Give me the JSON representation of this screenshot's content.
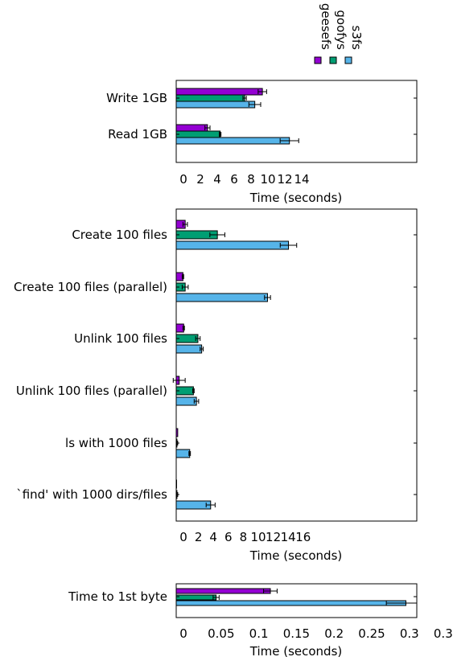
{
  "legend": {
    "items": [
      {
        "name": "geesefs",
        "color": "#9400d3"
      },
      {
        "name": "goofys",
        "color": "#009e73"
      },
      {
        "name": "s3fs",
        "color": "#56b4e9"
      }
    ]
  },
  "chart_data": [
    {
      "type": "bar",
      "orientation": "horizontal",
      "xlabel": "Time (seconds)",
      "xlim": [
        0,
        14
      ],
      "xticks": [
        "0",
        "2",
        "4",
        "6",
        "8",
        "10",
        "12",
        "14"
      ],
      "categories": [
        "Write 1GB",
        "Read 1GB"
      ],
      "series": [
        {
          "name": "geesefs",
          "color": "#9400d3",
          "values": [
            10.2,
            3.7
          ],
          "errors": [
            0.5,
            0.3
          ]
        },
        {
          "name": "goofys",
          "color": "#009e73",
          "values": [
            8.1,
            5.2
          ],
          "errors": [
            0.2,
            0.1
          ]
        },
        {
          "name": "s3fs",
          "color": "#56b4e9",
          "values": [
            9.3,
            13.4
          ],
          "errors": [
            0.7,
            1.1
          ]
        }
      ],
      "grid": false
    },
    {
      "type": "bar",
      "orientation": "horizontal",
      "xlabel": "Time (seconds)",
      "xlim": [
        0,
        16
      ],
      "xticks": [
        "0",
        "2",
        "4",
        "6",
        "8",
        "10",
        "12",
        "14",
        "16"
      ],
      "categories": [
        "Create 100 files",
        "Create 100 files (parallel)",
        "Unlink 100 files",
        "Unlink 100 files (parallel)",
        "ls with 1000 files",
        "`find' with 1000 dirs/files"
      ],
      "series": [
        {
          "name": "geesefs",
          "color": "#9400d3",
          "values": [
            1.2,
            0.9,
            1.0,
            0.4,
            0.2,
            0.05
          ],
          "errors": [
            0.3,
            0.1,
            0.1,
            0.8,
            0.0,
            0.0
          ]
        },
        {
          "name": "goofys",
          "color": "#009e73",
          "values": [
            5.5,
            1.2,
            2.9,
            2.3,
            0.1,
            0.1
          ],
          "errors": [
            1.0,
            0.4,
            0.3,
            0.1,
            0.1,
            0.1
          ]
        },
        {
          "name": "s3fs",
          "color": "#56b4e9",
          "values": [
            15.0,
            12.2,
            3.4,
            2.7,
            1.8,
            4.6
          ],
          "errors": [
            1.1,
            0.4,
            0.2,
            0.3,
            0.1,
            0.6
          ]
        }
      ],
      "grid": false
    },
    {
      "type": "bar",
      "orientation": "horizontal",
      "xlabel": "Time (seconds)",
      "xlim": [
        0,
        0.32
      ],
      "xticks": [
        "0",
        "0.05",
        "0.1",
        "0.15",
        "0.2",
        "0.25",
        "0.3",
        "0.35"
      ],
      "categories": [
        "Time to 1st byte"
      ],
      "series": [
        {
          "name": "geesefs",
          "color": "#9400d3",
          "values": [
            0.125
          ],
          "errors": [
            0.009
          ]
        },
        {
          "name": "goofys",
          "color": "#009e73",
          "values": [
            0.053
          ],
          "errors": [
            0.004
          ]
        },
        {
          "name": "s3fs",
          "color": "#56b4e9",
          "values": [
            0.305
          ],
          "errors": [
            0.026
          ]
        }
      ],
      "grid": false
    }
  ]
}
